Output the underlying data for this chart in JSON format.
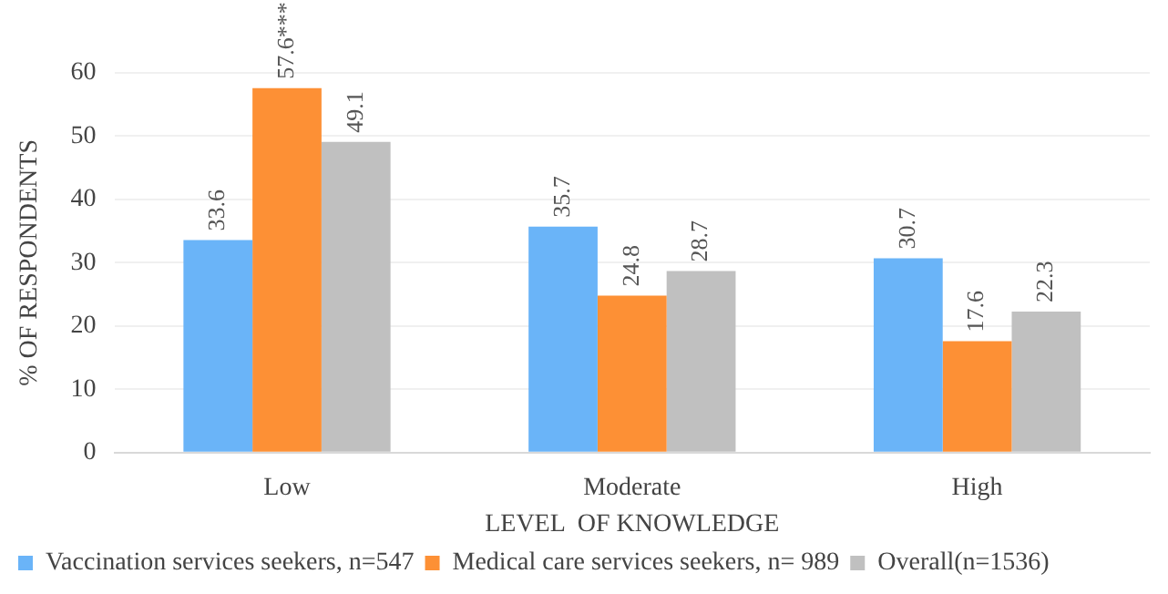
{
  "chart_data": {
    "type": "bar",
    "xlabel": "LEVEL  OF KNOWLEDGE",
    "ylabel": "% OF RESPONDENTS",
    "categories": [
      "Low",
      "Moderate",
      "High"
    ],
    "series": [
      {
        "name": "Vaccination services seekers, n=547",
        "color": "#6ab4f8",
        "values": [
          33.6,
          35.7,
          30.7
        ],
        "value_labels": [
          "33.6",
          "35.7",
          "30.7"
        ]
      },
      {
        "name": "Medical care services seekers, n= 989",
        "color": "#fd9035",
        "values": [
          57.6,
          24.8,
          17.6
        ],
        "value_labels": [
          "57.6***",
          "24.8",
          "17.6"
        ]
      },
      {
        "name": "Overall(n=1536)",
        "color": "#c0c0c0",
        "values": [
          49.1,
          28.7,
          22.3
        ],
        "value_labels": [
          "49.1",
          "28.7",
          "22.3"
        ]
      }
    ],
    "ylim": [
      0,
      60
    ],
    "yticks": [
      0,
      10,
      20,
      30,
      40,
      50,
      60
    ],
    "grid": "y",
    "legend": "bottom"
  }
}
